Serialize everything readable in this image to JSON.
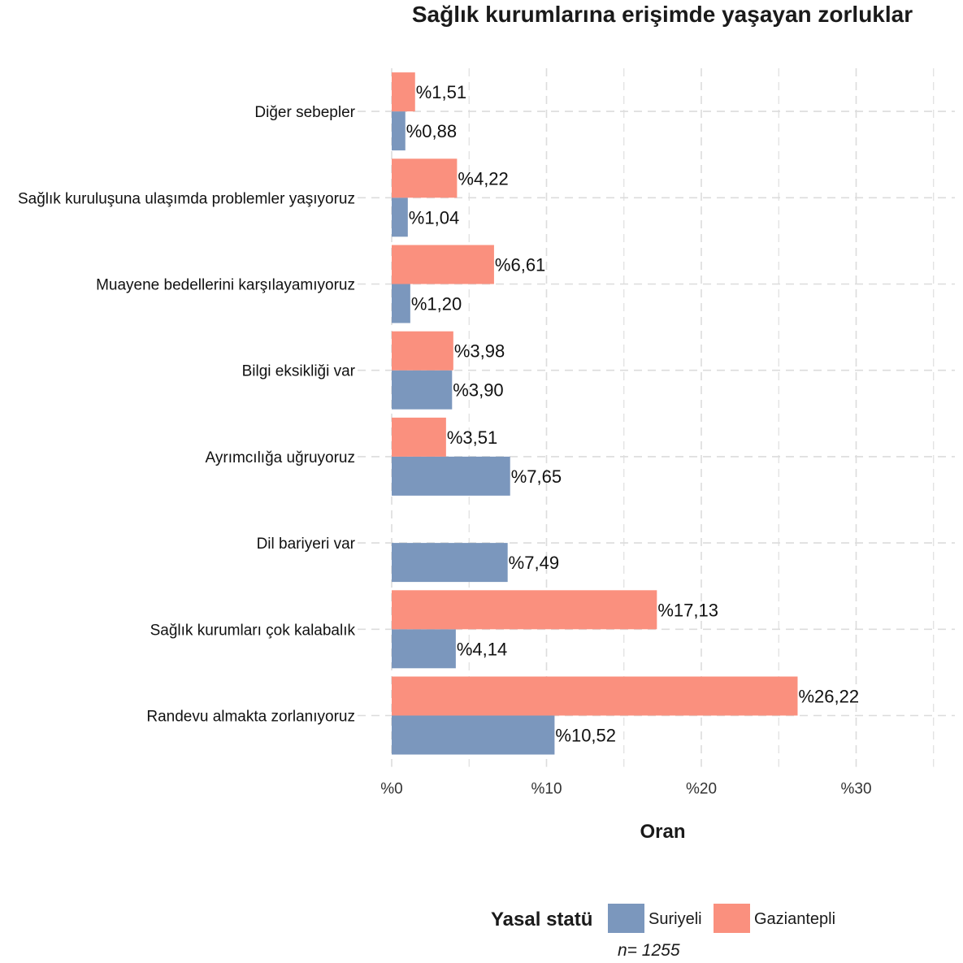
{
  "chart_data": {
    "type": "bar",
    "orientation": "horizontal",
    "title": "Sağlık kurumlarına erişimde yaşayan zorluklar",
    "xlabel": "Oran",
    "ylabel": "",
    "xlim": [
      0,
      35
    ],
    "x_ticks": [
      0,
      10,
      20,
      30
    ],
    "x_tick_labels": [
      "%0",
      "%10",
      "%20",
      "%30"
    ],
    "grid": true,
    "categories": [
      "Diğer sebepler",
      "Sağlık kuruluşuna ulaşımda problemler yaşıyoruz",
      "Muayene bedellerini karşılayamıyoruz",
      "Bilgi eksikliği var",
      "Ayrımcılığa uğruyoruz",
      "Dil bariyeri var",
      "Sağlık kurumları çok kalabalık",
      "Randevu almakta zorlanıyoruz"
    ],
    "series": [
      {
        "name": "Suriyeli",
        "color": "#7b97bd",
        "values": [
          0.88,
          1.04,
          1.2,
          3.9,
          7.65,
          7.49,
          4.14,
          10.52
        ],
        "labels": [
          "%0,88",
          "%1,04",
          "%1,20",
          "%3,90",
          "%7,65",
          "%7,49",
          "%4,14",
          "%10,52"
        ]
      },
      {
        "name": "Gaziantepli",
        "color": "#fa907e",
        "values": [
          1.51,
          4.22,
          6.61,
          3.98,
          3.51,
          null,
          17.13,
          26.22
        ],
        "labels": [
          "%1,51",
          "%4,22",
          "%6,61",
          "%3,98",
          "%3,51",
          null,
          "%17,13",
          "%26,22"
        ]
      }
    ],
    "legend": {
      "title": "Yasal statü",
      "position": "bottom"
    }
  },
  "caption": "n=  1255"
}
